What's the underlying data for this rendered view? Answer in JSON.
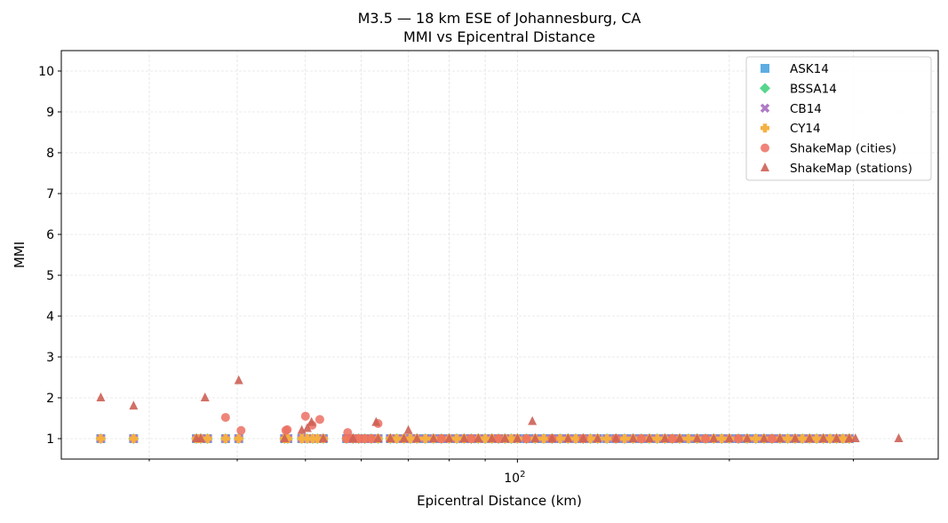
{
  "chart_data": {
    "type": "scatter",
    "title": "M3.5 — 18 km ESE of Johannesburg, CA",
    "subtitle": "MMI vs Epicentral Distance",
    "xlabel": "Epicentral Distance (km)",
    "ylabel": "MMI",
    "xscale": "log",
    "xlim": [
      22.5,
      396
    ],
    "ylim": [
      0.5,
      10.5
    ],
    "x_ticks": [
      {
        "value": 100,
        "label": "10",
        "sup": "2"
      }
    ],
    "x_minor_ticks": [
      30,
      40,
      50,
      60,
      70,
      80,
      90,
      200,
      300
    ],
    "y_ticks": [
      1,
      2,
      3,
      4,
      5,
      6,
      7,
      8,
      9,
      10
    ],
    "grid": true,
    "legend_position": "top-right",
    "model_distances": [
      25.6,
      28.5,
      35.0,
      35.5,
      36.3,
      38.5,
      40.2,
      46.7,
      47.2,
      49.4,
      50.3,
      51.2,
      52.0,
      53.0,
      57.2,
      58.4,
      59.5,
      60.7,
      62.0,
      63.4,
      66.0,
      67.4,
      69.0,
      70.5,
      72.0,
      74.0,
      76.0,
      78,
      80,
      82,
      84,
      86,
      88,
      90,
      92,
      94,
      96,
      98,
      100,
      103,
      106,
      109,
      112,
      115,
      118,
      121,
      124,
      127,
      130,
      134,
      138,
      142,
      146,
      150,
      154,
      158,
      162,
      166,
      170,
      175,
      180,
      185,
      190,
      195,
      200,
      206,
      212,
      218,
      224,
      230,
      236,
      242,
      248,
      254,
      260,
      266,
      272,
      278,
      284,
      290,
      296
    ],
    "series": [
      {
        "name": "ASK14",
        "marker": "square",
        "color": "#5DADE2",
        "mmi": 1.0
      },
      {
        "name": "BSSA14",
        "marker": "diamond",
        "color": "#58D68D",
        "mmi": 1.0
      },
      {
        "name": "CB14",
        "marker": "x",
        "color": "#AF7AC5",
        "mmi": 1.0
      },
      {
        "name": "CY14",
        "marker": "plus",
        "color": "#F5B041",
        "mmi": 1.0
      },
      {
        "name": "ShakeMap (cities)",
        "marker": "circle",
        "color": "#EC7063",
        "points": [
          [
            38.5,
            1.52
          ],
          [
            40.5,
            1.2
          ],
          [
            46.9,
            1.2
          ],
          [
            47.1,
            1.22
          ],
          [
            50.0,
            1.55
          ],
          [
            51.1,
            1.33
          ],
          [
            52.4,
            1.47
          ],
          [
            57.4,
            1.15
          ],
          [
            63.4,
            1.37
          ],
          [
            57.2,
            1.0
          ],
          [
            58.4,
            1.0
          ],
          [
            59.5,
            1.0
          ],
          [
            60.7,
            1.0
          ],
          [
            62.0,
            1.0
          ],
          [
            78,
            1.0
          ],
          [
            86,
            1.0
          ],
          [
            94,
            1.0
          ],
          [
            103,
            1.0
          ],
          [
            112,
            1.0
          ],
          [
            124,
            1.0
          ],
          [
            138,
            1.0
          ],
          [
            150,
            1.0
          ],
          [
            166,
            1.0
          ],
          [
            185,
            1.0
          ],
          [
            206,
            1.0
          ],
          [
            230,
            1.0
          ]
        ]
      },
      {
        "name": "ShakeMap (stations)",
        "marker": "triangle",
        "color": "#CD6155",
        "points": [
          [
            25.6,
            2.0
          ],
          [
            28.5,
            1.8
          ],
          [
            36.0,
            2.0
          ],
          [
            40.2,
            2.42
          ],
          [
            49.4,
            1.2
          ],
          [
            50.3,
            1.25
          ],
          [
            51.0,
            1.4
          ],
          [
            63.0,
            1.4
          ],
          [
            70.0,
            1.2
          ],
          [
            105,
            1.42
          ],
          [
            35.0,
            1.0
          ],
          [
            35.5,
            1.0
          ],
          [
            46.7,
            1.0
          ],
          [
            53.0,
            1.0
          ],
          [
            58.4,
            1.0
          ],
          [
            63.4,
            1.0
          ],
          [
            66.0,
            1.0
          ],
          [
            69.0,
            1.0
          ],
          [
            72.0,
            1.0
          ],
          [
            76.0,
            1.0
          ],
          [
            80,
            1.0
          ],
          [
            84,
            1.0
          ],
          [
            88,
            1.0
          ],
          [
            92,
            1.0
          ],
          [
            96,
            1.0
          ],
          [
            100,
            1.0
          ],
          [
            106,
            1.0
          ],
          [
            112,
            1.0
          ],
          [
            118,
            1.0
          ],
          [
            124,
            1.0
          ],
          [
            130,
            1.0
          ],
          [
            138,
            1.0
          ],
          [
            146,
            1.0
          ],
          [
            154,
            1.0
          ],
          [
            162,
            1.0
          ],
          [
            170,
            1.0
          ],
          [
            180,
            1.0
          ],
          [
            190,
            1.0
          ],
          [
            200,
            1.0
          ],
          [
            212,
            1.0
          ],
          [
            224,
            1.0
          ],
          [
            236,
            1.0
          ],
          [
            248,
            1.0
          ],
          [
            260,
            1.0
          ],
          [
            272,
            1.0
          ],
          [
            284,
            1.0
          ],
          [
            296,
            1.0
          ],
          [
            302,
            1.0
          ],
          [
            348,
            1.0
          ]
        ]
      }
    ]
  }
}
